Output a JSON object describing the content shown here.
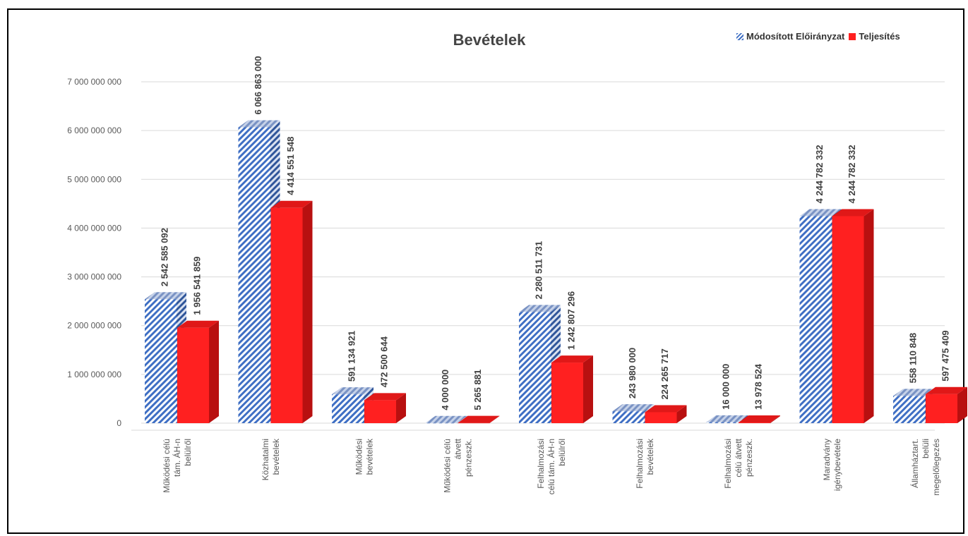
{
  "chart_data": {
    "type": "bar",
    "title": "Bevételek",
    "categories": [
      [
        "Működési célú",
        "tám. ÁH-n",
        "belülről"
      ],
      [
        "Közhatalmi",
        "bevételek"
      ],
      [
        "Működési",
        "bevételek"
      ],
      [
        "Működési célú",
        "átvett",
        "pénzeszk."
      ],
      [
        "Felhalmozási",
        "célú tám. ÁH-n",
        "belülről"
      ],
      [
        "Felhalmozási",
        "bevételek"
      ],
      [
        "Felhalmozási",
        "célú átvett",
        "pénzeszk."
      ],
      [
        "Maradvány",
        "igénybevétele"
      ],
      [
        "Államháztart.",
        "belüli",
        "megelőlegezés"
      ]
    ],
    "series": [
      {
        "name": "Módosított Előirányzat",
        "values": [
          2542585092,
          6066863000,
          591134921,
          4000000,
          2280511731,
          243980000,
          16000000,
          4244782332,
          558110848
        ],
        "labels": [
          "2 542 585 092",
          "6 066 863 000",
          "591 134 921",
          "4 000 000",
          "2 280 511 731",
          "243 980 000",
          "16 000 000",
          "4 244 782 332",
          "558 110 848"
        ],
        "color": "#3f6fc4"
      },
      {
        "name": "Teljesítés",
        "values": [
          1956541859,
          4414551548,
          472500644,
          5265881,
          1242807296,
          224265717,
          13978524,
          4244782332,
          597475409
        ],
        "labels": [
          "1 956 541 859",
          "4 414 551 548",
          "472 500 644",
          "5 265 881",
          "1 242 807 296",
          "224 265 717",
          "13 978 524",
          "4 244 782 332",
          "597 475 409"
        ],
        "color": "#ff2020"
      }
    ],
    "ylim": [
      0,
      7000000000
    ],
    "yticks": [
      0,
      1000000000,
      2000000000,
      3000000000,
      4000000000,
      5000000000,
      6000000000,
      7000000000
    ],
    "ytick_labels": [
      "0",
      "1 000 000 000",
      "2 000 000 000",
      "3 000 000 000",
      "4 000 000 000",
      "5 000 000 000",
      "6 000 000 000",
      "7 000 000 000"
    ],
    "grid": true,
    "legend_position": "top-right"
  }
}
